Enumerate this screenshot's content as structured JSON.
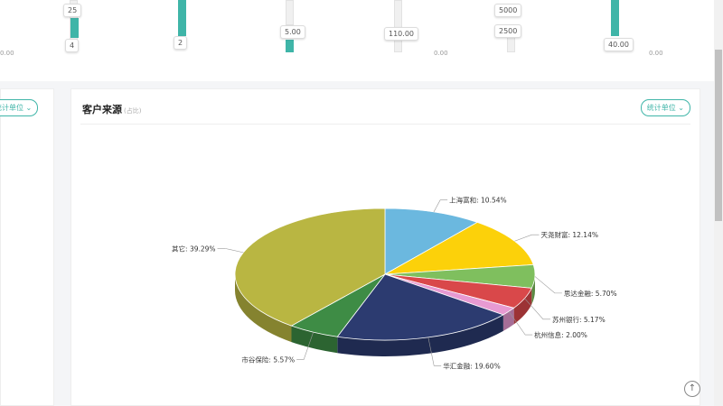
{
  "sliders": {
    "s1_high": "25",
    "s1_low": "4",
    "s2_low": "2",
    "s3": "5.00",
    "s4": "110.00",
    "s5_high": "5000",
    "s5_low": "2500",
    "s6": "40.00",
    "tick_left": "0.00",
    "tick_mid": "0.00",
    "tick_right": "0.00"
  },
  "left_panel": {
    "unit_label": "统计单位"
  },
  "card": {
    "title": "客户来源",
    "title_suffix": "(占比)",
    "unit_label": "统计单位"
  },
  "chart_data": {
    "type": "pie",
    "style": "3d",
    "slices": [
      {
        "name": "上海富和",
        "value": 10.54,
        "label": "上海富和: 10.54%",
        "color": "#6bb8df"
      },
      {
        "name": "天尧财富",
        "value": 12.14,
        "label": "天尧财富: 12.14%",
        "color": "#fcd10a"
      },
      {
        "name": "思达金融",
        "value": 5.7,
        "label": "思达金融: 5.70%",
        "color": "#7fbf5e"
      },
      {
        "name": "苏州银行",
        "value": 5.17,
        "label": "苏州银行: 5.17%",
        "color": "#d9484a"
      },
      {
        "name": "杭州信息",
        "value": 2.0,
        "label": "杭州信息: 2.00%",
        "color": "#e79ad2"
      },
      {
        "name": "华汇金融",
        "value": 19.6,
        "label": "华汇金融: 19.60%",
        "color": "#2c3b70"
      },
      {
        "name": "市谷保险",
        "value": 5.57,
        "label": "市谷保险: 5.57%",
        "color": "#3e8c45"
      },
      {
        "name": "其它",
        "value": 39.29,
        "label": "其它: 39.29%",
        "color": "#b9b642"
      }
    ]
  },
  "scroll_top_icon": "arrow-up-circle-icon"
}
